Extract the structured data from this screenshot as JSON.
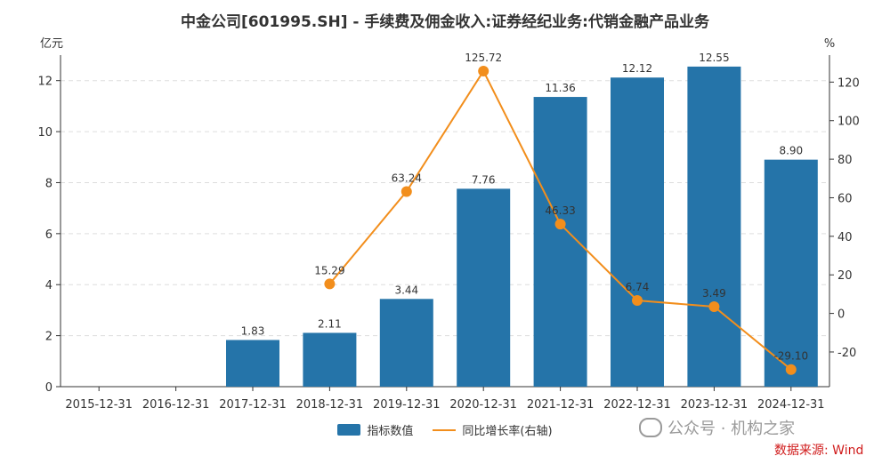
{
  "chart_data": {
    "type": "bar+line",
    "title": "中金公司[601995.SH] - 手续费及佣金收入:证券经纪业务:代销金融产品业务",
    "categories": [
      "2015-12-31",
      "2016-12-31",
      "2017-12-31",
      "2018-12-31",
      "2019-12-31",
      "2020-12-31",
      "2021-12-31",
      "2022-12-31",
      "2023-12-31",
      "2024-12-31"
    ],
    "series": [
      {
        "name": "指标数值",
        "type": "bar",
        "axis": "left",
        "values": [
          null,
          null,
          1.83,
          2.11,
          3.44,
          7.76,
          11.36,
          12.12,
          12.55,
          8.9
        ],
        "labels": [
          "",
          "",
          "1.83",
          "2.11",
          "3.44",
          "7.76",
          "11.36",
          "12.12",
          "12.55",
          "8.90"
        ],
        "color": "#2574a9"
      },
      {
        "name": "同比增长率(右轴)",
        "type": "line",
        "axis": "right",
        "values": [
          null,
          null,
          null,
          15.29,
          63.24,
          125.72,
          46.33,
          6.74,
          3.49,
          -29.1
        ],
        "labels": [
          "",
          "",
          "",
          "15.29",
          "63.24",
          "125.72",
          "46.33",
          "6.74",
          "3.49",
          "-29.10"
        ],
        "color": "#f28e1c"
      }
    ],
    "y_left": {
      "unit": "亿元",
      "ticks": [
        0,
        2,
        4,
        6,
        8,
        10,
        12
      ],
      "range": [
        0,
        13
      ]
    },
    "y_right": {
      "unit": "%",
      "ticks": [
        -20,
        0,
        20,
        40,
        60,
        80,
        100,
        120
      ],
      "range": [
        -38,
        134
      ]
    },
    "grid": true,
    "legend_position": "bottom-center"
  },
  "watermark": "公众号 · 机构之家",
  "source": "数据来源: Wind"
}
